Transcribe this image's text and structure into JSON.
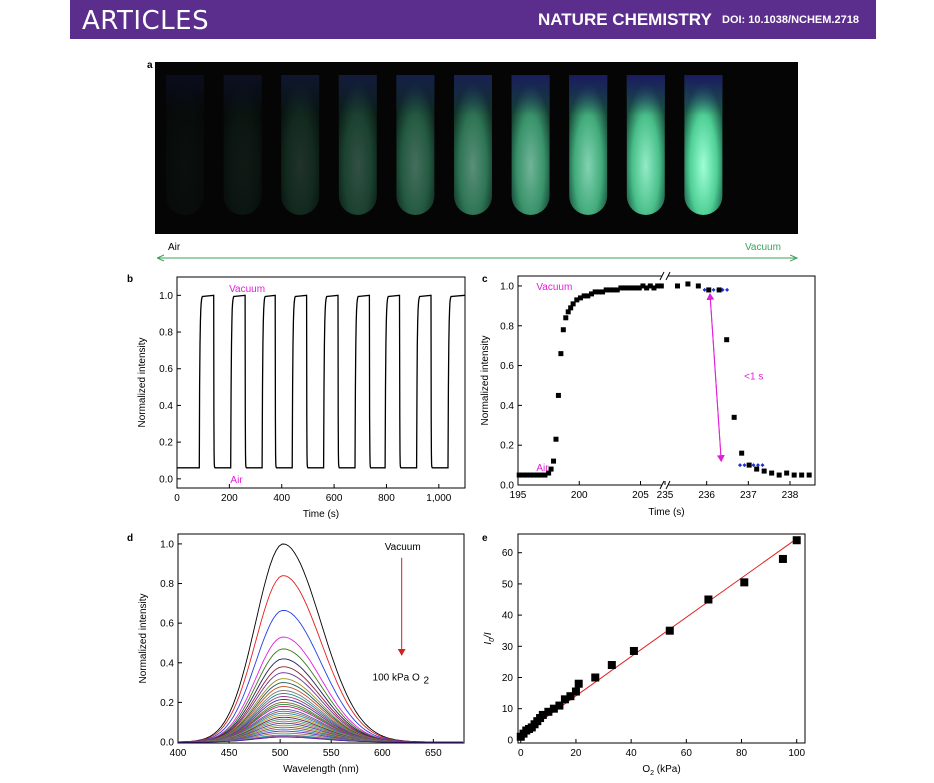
{
  "header": {
    "section": "ARTICLES",
    "journal": "NATURE CHEMISTRY",
    "doi": "DOI: 10.1038/NCHEM.2718",
    "colors": {
      "banner": "#5b2d8c"
    }
  },
  "panel_a": {
    "label": "a",
    "arrow_left": "Air",
    "arrow_right": "Vacuum",
    "tube_brightness": [
      0.04,
      0.08,
      0.18,
      0.3,
      0.42,
      0.55,
      0.7,
      0.82,
      0.92,
      1.0
    ],
    "colors": {
      "glow": "#7dffc8",
      "arrow": "#3aa35a",
      "vacuum_text": "#3aa35a"
    }
  },
  "chart_data": [
    {
      "panel": "b",
      "type": "line",
      "xlabel": "Time (s)",
      "ylabel": "Normalized intensity",
      "xlim": [
        0,
        1100
      ],
      "ylim": [
        -0.05,
        1.1
      ],
      "xticks": [
        0,
        200,
        400,
        600,
        800,
        1000
      ],
      "xtick_labels": [
        "0",
        "200",
        "400",
        "600",
        "800",
        "1,000"
      ],
      "yticks": [
        0.0,
        0.2,
        0.4,
        0.6,
        0.8,
        1.0
      ],
      "ytick_labels": [
        "0.0",
        "0.2",
        "0.4",
        "0.6",
        "0.8",
        "1.0"
      ],
      "annotations": [
        {
          "text": "Vacuum",
          "x": 180,
          "y": 1.04,
          "color": "#e020d8"
        },
        {
          "text": "Air",
          "x": 185,
          "y": 0.0,
          "color": "#e020d8"
        }
      ],
      "low": 0.06,
      "high": 1.0,
      "vacuum_on": [
        85,
        205,
        325,
        440,
        560,
        680,
        795,
        915,
        1035
      ],
      "vacuum_off": [
        140,
        260,
        375,
        495,
        615,
        735,
        850,
        970
      ]
    },
    {
      "panel": "c",
      "type": "scatter",
      "xlabel": "Time (s)",
      "ylabel": "Normalized intensity",
      "ylim": [
        0,
        1.05
      ],
      "yticks": [
        0.0,
        0.2,
        0.4,
        0.6,
        0.8,
        1.0
      ],
      "ytick_labels": [
        "0.0",
        "0.2",
        "0.4",
        "0.6",
        "0.8",
        "1.0"
      ],
      "xtick_labels": [
        "195",
        "200",
        "205",
        "235",
        "236",
        "237",
        "238"
      ],
      "segments": [
        {
          "xlim": [
            195,
            207
          ],
          "xticks": [
            195,
            200,
            205
          ]
        },
        {
          "xlim": [
            235,
            238.6
          ],
          "xticks": [
            235,
            236,
            237,
            238
          ]
        }
      ],
      "annotations": [
        {
          "text": "Vacuum",
          "x": 196.5,
          "y": 1.0,
          "color": "#e020d8"
        },
        {
          "text": "Air",
          "x": 196.5,
          "y": 0.09,
          "color": "#e020d8"
        },
        {
          "text": "<1 s",
          "x": 236.9,
          "y": 0.55,
          "color": "#e020d8"
        }
      ],
      "rise": {
        "x": [
          195.1,
          195.4,
          195.7,
          196.0,
          196.3,
          196.6,
          196.9,
          197.2,
          197.5,
          197.7,
          197.9,
          198.1,
          198.3,
          198.5,
          198.7,
          198.9,
          199.1,
          199.3,
          199.5,
          199.8,
          200.1,
          200.4,
          200.7,
          201.0,
          201.3,
          201.6,
          201.9,
          202.2,
          202.5,
          202.8,
          203.1,
          203.4,
          203.7,
          204.0,
          204.3,
          204.6,
          204.9,
          205.2,
          205.5,
          205.8,
          206.1,
          206.4,
          206.7
        ],
        "y": [
          0.05,
          0.05,
          0.05,
          0.05,
          0.05,
          0.05,
          0.05,
          0.05,
          0.06,
          0.08,
          0.12,
          0.23,
          0.45,
          0.66,
          0.78,
          0.84,
          0.87,
          0.89,
          0.91,
          0.93,
          0.94,
          0.95,
          0.95,
          0.96,
          0.97,
          0.97,
          0.97,
          0.98,
          0.98,
          0.98,
          0.98,
          0.99,
          0.99,
          0.99,
          0.99,
          0.99,
          0.99,
          1.0,
          0.99,
          1.0,
          0.99,
          1.0,
          1.0
        ]
      },
      "decay": {
        "x": [
          235.3,
          235.55,
          235.8,
          236.05,
          236.3,
          236.48,
          236.66,
          236.84,
          237.02,
          237.2,
          237.38,
          237.56,
          237.74,
          237.92,
          238.1,
          238.28,
          238.46
        ],
        "y": [
          1.0,
          1.01,
          1.0,
          0.98,
          0.98,
          0.73,
          0.34,
          0.16,
          0.1,
          0.08,
          0.07,
          0.06,
          0.05,
          0.06,
          0.05,
          0.05,
          0.05
        ]
      },
      "fit_segments": [
        {
          "x": [
            235.95,
            236.55
          ],
          "y": [
            0.98,
            0.98
          ]
        },
        {
          "x": [
            236.8,
            237.35
          ],
          "y": [
            0.1,
            0.1
          ]
        }
      ],
      "fit_color": "#1f2fd0"
    },
    {
      "panel": "d",
      "type": "line",
      "xlabel": "Wavelength (nm)",
      "ylabel": "Normalized intensity",
      "xlim": [
        400,
        680
      ],
      "ylim": [
        -0.005,
        1.05
      ],
      "xticks": [
        400,
        450,
        500,
        550,
        600,
        650
      ],
      "xtick_labels": [
        "400",
        "450",
        "500",
        "550",
        "600",
        "650"
      ],
      "yticks": [
        0.0,
        0.2,
        0.4,
        0.6,
        0.8,
        1.0
      ],
      "ytick_labels": [
        "0.0",
        "0.2",
        "0.4",
        "0.6",
        "0.8",
        "1.0"
      ],
      "annotations": [
        {
          "text": "Vacuum",
          "x": 620,
          "y": 0.97
        },
        {
          "text": "100 kPa O",
          "sub": "2",
          "x": 612,
          "y": 0.33
        }
      ],
      "arrow_color": "#d42020",
      "peak_nm": 503,
      "peaks": [
        1.0,
        0.84,
        0.665,
        0.53,
        0.47,
        0.42,
        0.38,
        0.35,
        0.32,
        0.3,
        0.28,
        0.26,
        0.245,
        0.23,
        0.215,
        0.2,
        0.19,
        0.18,
        0.165,
        0.155,
        0.145,
        0.135,
        0.125,
        0.115,
        0.105,
        0.095,
        0.085,
        0.075,
        0.065,
        0.055,
        0.045,
        0.035,
        0.03,
        0.025
      ],
      "colors": [
        "#000000",
        "#e02020",
        "#2040e0",
        "#e020e0",
        "#3a7a20",
        "#20205a",
        "#8a2030",
        "#6a30a0",
        "#a09020",
        "#205a5a",
        "#c05020",
        "#7a7a7a",
        "#2a8a8a",
        "#a03a80",
        "#3a3aa0",
        "#8a6a30",
        "#209030",
        "#c02080",
        "#5050c0",
        "#906040",
        "#2090c0",
        "#c0a020",
        "#602060",
        "#30a070",
        "#c06060",
        "#4040a0",
        "#80a030",
        "#a04040",
        "#3090a0",
        "#6030c0",
        "#a07050",
        "#20a0a0",
        "#905090",
        "#5020a0"
      ]
    },
    {
      "panel": "e",
      "type": "scatter",
      "xlabel": "O2 (kPa)",
      "ylabel": "I0/I",
      "xlim": [
        -1,
        103
      ],
      "ylim": [
        -1,
        66
      ],
      "xticks": [
        0,
        20,
        40,
        60,
        80,
        100
      ],
      "xtick_labels": [
        "0",
        "20",
        "40",
        "60",
        "80",
        "100"
      ],
      "yticks": [
        0,
        10,
        20,
        30,
        40,
        50,
        60
      ],
      "ytick_labels": [
        "0",
        "10",
        "20",
        "30",
        "40",
        "50",
        "60"
      ],
      "x": [
        0,
        1,
        2,
        3,
        4,
        5,
        6,
        7,
        8,
        10,
        12,
        14,
        16,
        18,
        20,
        21,
        27,
        33,
        41,
        54,
        68,
        81,
        95,
        100
      ],
      "y": [
        1,
        2,
        3,
        3.5,
        4,
        5,
        6,
        7,
        8,
        9,
        10,
        11,
        13,
        14,
        15.5,
        18,
        20,
        24,
        28.5,
        35,
        45,
        50.5,
        58,
        64
      ],
      "fit": {
        "x": [
          0,
          100
        ],
        "y": [
          1.5,
          64.5
        ],
        "color": "#e02020"
      }
    }
  ],
  "panel_labels": {
    "b": "b",
    "c": "c",
    "d": "d",
    "e": "e"
  }
}
